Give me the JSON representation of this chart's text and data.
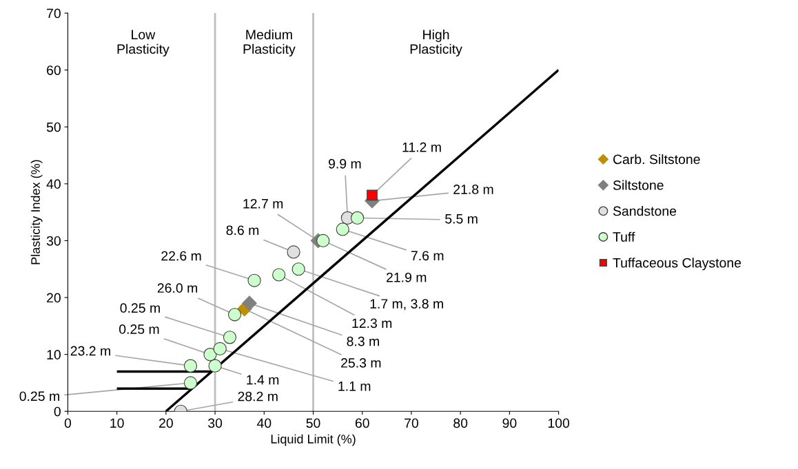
{
  "chart_data": {
    "type": "scatter",
    "xlabel": "Liquid Limit (%)",
    "ylabel": "Plasticity Index (%)",
    "xlim": [
      0,
      100
    ],
    "xticks": [
      0,
      10,
      20,
      30,
      40,
      50,
      60,
      70,
      80,
      90,
      100
    ],
    "ylim": [
      0,
      70
    ],
    "yticks": [
      0,
      10,
      20,
      30,
      40,
      50,
      60,
      70
    ],
    "grid": false,
    "legend": "right",
    "series": [
      {
        "type": "line",
        "color": "#000000",
        "x": [
          20,
          100
        ],
        "values": [
          0,
          60
        ],
        "marker": "none"
      },
      {
        "type": "line",
        "color": "#000000",
        "x": [
          10,
          29.3
        ],
        "values": [
          7,
          7
        ],
        "marker": "none"
      },
      {
        "type": "line",
        "color": "#000000",
        "x": [
          10,
          25.3
        ],
        "values": [
          4,
          4
        ],
        "marker": "none"
      },
      {
        "name": "Carb. Siltstone",
        "color": "#bf8f00",
        "marker": "diamond",
        "x": [
          36
        ],
        "values": [
          18
        ]
      },
      {
        "name": "Siltstone",
        "color": "#808080",
        "marker": "diamond",
        "x": [
          37,
          51,
          62
        ],
        "values": [
          19,
          30,
          37
        ]
      },
      {
        "name": "Sandstone",
        "color": "#e0e0e0",
        "marker": "circle",
        "x": [
          23,
          46,
          57
        ],
        "values": [
          0,
          28,
          34
        ]
      },
      {
        "name": "Tuff",
        "color": "#ccffcc",
        "marker": "circle",
        "x": [
          25,
          25,
          30,
          29,
          31,
          33,
          34,
          38,
          43,
          47,
          52,
          56,
          59
        ],
        "values": [
          5,
          8,
          8,
          10,
          11,
          13,
          17,
          23,
          24,
          25,
          30,
          32,
          34
        ]
      },
      {
        "name": "Tuffaceous Claystone",
        "color": "#ff0000",
        "marker": "square",
        "x": [
          62
        ],
        "values": [
          38
        ]
      }
    ],
    "ref_lines": [
      {
        "axis": "x",
        "value": 30,
        "color": "#bfbfbf"
      },
      {
        "axis": "x",
        "value": 50,
        "color": "#bfbfbf"
      }
    ],
    "annotations": [
      "Low\nPlasticity",
      "Medium\nPlasticity",
      "High\nPlasticity",
      {
        "text": "28.2 m",
        "x": 23,
        "y": 0
      },
      {
        "text": "0.25 m",
        "x": 25,
        "y": 5
      },
      {
        "text": "23.2 m",
        "x": 25,
        "y": 8
      },
      {
        "text": "1.4 m",
        "x": 30,
        "y": 8
      },
      {
        "text": "0.25 m",
        "x": 29,
        "y": 10
      },
      {
        "text": "1.1 m",
        "x": 31,
        "y": 11
      },
      {
        "text": "0.25 m",
        "x": 33,
        "y": 13
      },
      {
        "text": "26.0 m",
        "x": 34,
        "y": 17
      },
      {
        "text": "8.3 m",
        "x": 37,
        "y": 19
      },
      {
        "text": "25.3 m",
        "x": 36,
        "y": 18
      },
      {
        "text": "22.6 m",
        "x": 38,
        "y": 23
      },
      {
        "text": "12.3 m",
        "x": 43,
        "y": 24
      },
      {
        "text": "1.7 m, 3.8 m",
        "x": 47,
        "y": 25
      },
      {
        "text": "8.6 m",
        "x": 46,
        "y": 28
      },
      {
        "text": "12.7 m",
        "x": 51,
        "y": 30
      },
      {
        "text": "21.9 m",
        "x": 52,
        "y": 30
      },
      {
        "text": "7.6 m",
        "x": 56,
        "y": 32
      },
      {
        "text": "9.9 m",
        "x": 57,
        "y": 34
      },
      {
        "text": "5.5 m",
        "x": 59,
        "y": 34
      },
      {
        "text": "11.2 m",
        "x": 62,
        "y": 38
      },
      {
        "text": "21.8 m",
        "x": 62,
        "y": 37
      }
    ]
  }
}
